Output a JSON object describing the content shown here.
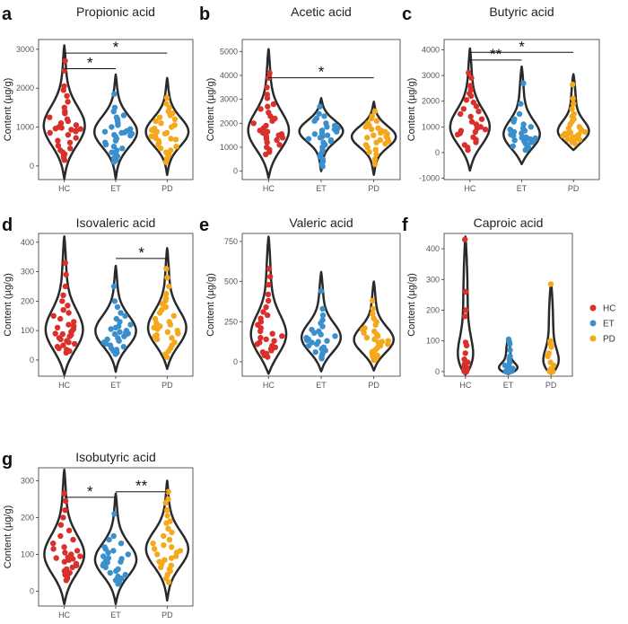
{
  "legend": [
    {
      "name": "HC",
      "color": "#d9302c"
    },
    {
      "name": "ET",
      "color": "#3b8fcd"
    },
    {
      "name": "PD",
      "color": "#f4a81b"
    }
  ],
  "chart_data": [
    {
      "id": "a",
      "title": "Propionic acid",
      "type": "violin",
      "ylabel": "Content (µg/g)",
      "ylim": [
        -350,
        3250
      ],
      "yticks": [
        0,
        1000,
        2000,
        3000
      ],
      "categories": [
        "HC",
        "ET",
        "PD"
      ],
      "groups": [
        {
          "name": "HC",
          "min": -330,
          "max": 3100,
          "median": 950,
          "mode": 960,
          "values": [
            2700,
            2450,
            2050,
            1950,
            1800,
            1650,
            1500,
            1400,
            1350,
            1250,
            1200,
            1150,
            1100,
            1050,
            1000,
            980,
            960,
            950,
            930,
            910,
            890,
            850,
            800,
            720,
            650,
            600,
            520,
            450,
            400,
            350,
            300,
            250,
            200,
            150
          ]
        },
        {
          "name": "ET",
          "min": -330,
          "max": 2350,
          "median": 820,
          "mode": 850,
          "values": [
            1850,
            1500,
            1400,
            1300,
            1250,
            1200,
            1150,
            1100,
            1050,
            1000,
            950,
            900,
            880,
            860,
            850,
            830,
            800,
            780,
            750,
            700,
            650,
            600,
            550,
            500,
            450,
            400,
            350,
            300,
            250,
            200,
            150,
            100
          ]
        },
        {
          "name": "PD",
          "min": -230,
          "max": 2260,
          "median": 860,
          "mode": 850,
          "values": [
            1750,
            1600,
            1500,
            1400,
            1350,
            1300,
            1250,
            1200,
            1150,
            1100,
            1050,
            1000,
            960,
            920,
            880,
            850,
            830,
            800,
            760,
            720,
            700,
            680,
            650,
            600,
            550,
            500,
            450,
            400,
            350,
            300,
            250,
            200,
            100
          ]
        }
      ],
      "significance": [
        {
          "from": "HC",
          "to": "ET",
          "y": 2500,
          "label": "*"
        },
        {
          "from": "HC",
          "to": "PD",
          "y": 2900,
          "label": "*"
        }
      ]
    },
    {
      "id": "b",
      "title": "Acetic acid",
      "type": "violin",
      "ylabel": "Content (µg/g)",
      "ylim": [
        -350,
        5500
      ],
      "yticks": [
        0,
        1000,
        2000,
        3000,
        4000,
        5000
      ],
      "categories": [
        "HC",
        "ET",
        "PD"
      ],
      "groups": [
        {
          "name": "HC",
          "min": -280,
          "max": 5100,
          "median": 1700,
          "mode": 1550,
          "values": [
            4100,
            3900,
            3500,
            3200,
            3050,
            2800,
            2700,
            2600,
            2450,
            2300,
            2200,
            2100,
            2000,
            1900,
            1800,
            1700,
            1650,
            1600,
            1550,
            1500,
            1450,
            1400,
            1350,
            1300,
            1200,
            1100,
            1000,
            900,
            800,
            700
          ]
        },
        {
          "name": "ET",
          "min": 0,
          "max": 3050,
          "median": 1500,
          "mode": 1700,
          "values": [
            2700,
            2400,
            2300,
            2200,
            2100,
            2000,
            1900,
            1850,
            1800,
            1750,
            1700,
            1650,
            1600,
            1550,
            1500,
            1450,
            1400,
            1350,
            1300,
            1250,
            1200,
            1100,
            1000,
            900,
            800,
            700,
            600,
            500,
            400,
            300,
            200
          ]
        },
        {
          "name": "PD",
          "min": -150,
          "max": 2900,
          "median": 1500,
          "mode": 1450,
          "values": [
            2500,
            2300,
            2200,
            2100,
            2000,
            1900,
            1850,
            1800,
            1750,
            1700,
            1650,
            1600,
            1550,
            1500,
            1450,
            1400,
            1350,
            1300,
            1250,
            1200,
            1150,
            1100,
            1000,
            900,
            800,
            700,
            500,
            300
          ]
        }
      ],
      "significance": [
        {
          "from": "HC",
          "to": "PD",
          "y": 3900,
          "label": "*"
        }
      ]
    },
    {
      "id": "c",
      "title": "Butyric acid",
      "type": "violin",
      "ylabel": "Content (µg/g)",
      "ylim": [
        -1050,
        4400
      ],
      "yticks": [
        -1000,
        0,
        1000,
        2000,
        3000,
        4000
      ],
      "categories": [
        "HC",
        "ET",
        "PD"
      ],
      "groups": [
        {
          "name": "HC",
          "min": -700,
          "max": 4050,
          "median": 1300,
          "mode": 850,
          "values": [
            3100,
            2900,
            2600,
            2450,
            2300,
            2200,
            2050,
            1950,
            1800,
            1700,
            1600,
            1500,
            1400,
            1300,
            1200,
            1100,
            1000,
            950,
            900,
            850,
            800,
            750,
            700,
            600,
            500,
            400,
            300,
            200,
            100
          ]
        },
        {
          "name": "ET",
          "min": -450,
          "max": 3350,
          "median": 650,
          "mode": 550,
          "values": [
            2700,
            1900,
            1500,
            1300,
            1200,
            1100,
            1000,
            950,
            900,
            850,
            800,
            750,
            700,
            650,
            600,
            580,
            560,
            540,
            520,
            500,
            480,
            450,
            400,
            350,
            300,
            250,
            200,
            150,
            100
          ]
        },
        {
          "name": "PD",
          "min": 100,
          "max": 3050,
          "median": 750,
          "mode": 650,
          "values": [
            2650,
            2100,
            1900,
            1700,
            1500,
            1400,
            1300,
            1200,
            1100,
            1000,
            950,
            900,
            850,
            800,
            780,
            760,
            740,
            720,
            700,
            680,
            660,
            640,
            620,
            600,
            580,
            560,
            540,
            520,
            500,
            450,
            400,
            350
          ]
        }
      ],
      "significance": [
        {
          "from": "HC",
          "to": "ET",
          "y": 3600,
          "label": "**"
        },
        {
          "from": "HC",
          "to": "PD",
          "y": 3900,
          "label": "*"
        }
      ]
    },
    {
      "id": "d",
      "title": "Isovaleric acid",
      "type": "violin",
      "ylabel": "Content (µg/g)",
      "ylim": [
        -55,
        430
      ],
      "yticks": [
        0,
        100,
        200,
        300,
        400
      ],
      "categories": [
        "HC",
        "ET",
        "PD"
      ],
      "groups": [
        {
          "name": "HC",
          "min": -50,
          "max": 420,
          "median": 95,
          "mode": 85,
          "values": [
            330,
            290,
            250,
            220,
            200,
            185,
            170,
            160,
            150,
            140,
            130,
            120,
            115,
            110,
            105,
            100,
            95,
            90,
            88,
            85,
            80,
            75,
            70,
            65,
            60,
            55,
            50,
            45,
            40,
            35,
            30,
            25
          ]
        },
        {
          "name": "ET",
          "min": -40,
          "max": 320,
          "median": 90,
          "mode": 90,
          "values": [
            250,
            200,
            180,
            160,
            150,
            140,
            130,
            120,
            115,
            110,
            105,
            100,
            95,
            92,
            90,
            88,
            85,
            80,
            75,
            70,
            65,
            60,
            55,
            50,
            45,
            40,
            35,
            30,
            25,
            20
          ]
        },
        {
          "name": "PD",
          "min": -30,
          "max": 380,
          "median": 115,
          "mode": 95,
          "values": [
            310,
            280,
            250,
            225,
            210,
            200,
            190,
            180,
            170,
            160,
            150,
            140,
            130,
            125,
            120,
            115,
            110,
            105,
            100,
            95,
            90,
            85,
            80,
            75,
            70,
            60,
            50,
            40,
            30,
            20,
            10
          ]
        }
      ],
      "significance": [
        {
          "from": "ET",
          "to": "PD",
          "y": 345,
          "label": "*"
        }
      ]
    },
    {
      "id": "e",
      "title": "Valeric acid",
      "type": "violin",
      "ylabel": "Content (µg/g)",
      "ylim": [
        -90,
        800
      ],
      "yticks": [
        0,
        250,
        500,
        750
      ],
      "categories": [
        "HC",
        "ET",
        "PD"
      ],
      "groups": [
        {
          "name": "HC",
          "min": -75,
          "max": 780,
          "median": 160,
          "mode": 130,
          "values": [
            580,
            530,
            480,
            420,
            380,
            340,
            310,
            290,
            270,
            250,
            230,
            210,
            190,
            175,
            160,
            150,
            140,
            130,
            120,
            110,
            100,
            90,
            80,
            70,
            60,
            50,
            40,
            30
          ]
        },
        {
          "name": "ET",
          "min": -60,
          "max": 560,
          "median": 140,
          "mode": 130,
          "values": [
            440,
            330,
            290,
            260,
            240,
            220,
            200,
            190,
            180,
            170,
            160,
            150,
            140,
            135,
            130,
            125,
            120,
            110,
            100,
            90,
            80,
            70,
            60,
            50,
            40,
            30,
            20
          ]
        },
        {
          "name": "PD",
          "min": -55,
          "max": 500,
          "median": 140,
          "mode": 120,
          "values": [
            380,
            330,
            300,
            270,
            250,
            230,
            210,
            200,
            190,
            180,
            170,
            160,
            150,
            140,
            130,
            125,
            120,
            110,
            100,
            90,
            80,
            70,
            60,
            50,
            40,
            30,
            20,
            10
          ]
        }
      ],
      "significance": []
    },
    {
      "id": "f",
      "title": "Caproic acid",
      "type": "violin",
      "ylabel": "Content (µg/g)",
      "ylim": [
        -15,
        450
      ],
      "yticks": [
        0,
        100,
        200,
        300,
        400
      ],
      "categories": [
        "HC",
        "ET",
        "PD"
      ],
      "groups": [
        {
          "name": "HC",
          "min": -10,
          "max": 440,
          "median": 5,
          "mode": 3,
          "values": [
            430,
            260,
            200,
            180,
            95,
            85,
            60,
            40,
            30,
            25,
            20,
            15,
            12,
            10,
            8,
            6,
            5,
            4,
            3,
            3,
            2,
            2,
            1,
            1,
            1,
            0,
            0,
            0,
            0,
            0
          ]
        },
        {
          "name": "ET",
          "min": -8,
          "max": 110,
          "median": 2,
          "mode": 1,
          "values": [
            105,
            95,
            90,
            70,
            50,
            40,
            30,
            20,
            15,
            10,
            8,
            6,
            5,
            4,
            3,
            2,
            2,
            1,
            1,
            1,
            0,
            0,
            0,
            0,
            0,
            0,
            0,
            0
          ]
        },
        {
          "name": "PD",
          "min": -8,
          "max": 290,
          "median": 2,
          "mode": 1,
          "values": [
            285,
            100,
            95,
            85,
            80,
            60,
            50,
            30,
            20,
            10,
            8,
            6,
            5,
            4,
            3,
            2,
            2,
            1,
            1,
            1,
            0,
            0,
            0,
            0,
            0,
            0,
            0,
            0,
            0
          ]
        }
      ],
      "significance": []
    },
    {
      "id": "g",
      "title": "Isobutyric acid",
      "type": "violin",
      "ylabel": "Content (µg/g)",
      "ylim": [
        -40,
        335
      ],
      "yticks": [
        0,
        100,
        200,
        300
      ],
      "categories": [
        "HC",
        "ET",
        "PD"
      ],
      "groups": [
        {
          "name": "HC",
          "min": -35,
          "max": 330,
          "median": 95,
          "mode": 90,
          "values": [
            265,
            245,
            220,
            200,
            180,
            165,
            150,
            140,
            130,
            120,
            115,
            110,
            105,
            100,
            95,
            92,
            90,
            88,
            85,
            80,
            75,
            70,
            65,
            60,
            55,
            50,
            45,
            40,
            35,
            30
          ]
        },
        {
          "name": "ET",
          "min": -35,
          "max": 265,
          "median": 80,
          "mode": 80,
          "values": [
            210,
            150,
            140,
            130,
            120,
            115,
            110,
            105,
            100,
            95,
            90,
            88,
            85,
            82,
            80,
            78,
            75,
            70,
            65,
            60,
            55,
            50,
            45,
            40,
            35,
            30,
            25,
            20
          ]
        },
        {
          "name": "PD",
          "min": -25,
          "max": 300,
          "median": 115,
          "mode": 110,
          "values": [
            270,
            250,
            240,
            220,
            205,
            190,
            185,
            170,
            160,
            150,
            140,
            130,
            125,
            120,
            115,
            110,
            105,
            100,
            95,
            90,
            85,
            80,
            75,
            70,
            65,
            60,
            55,
            45,
            35,
            25
          ]
        }
      ],
      "significance": [
        {
          "from": "HC",
          "to": "ET",
          "y": 255,
          "label": "*"
        },
        {
          "from": "ET",
          "to": "PD",
          "y": 270,
          "label": "**"
        }
      ]
    }
  ]
}
